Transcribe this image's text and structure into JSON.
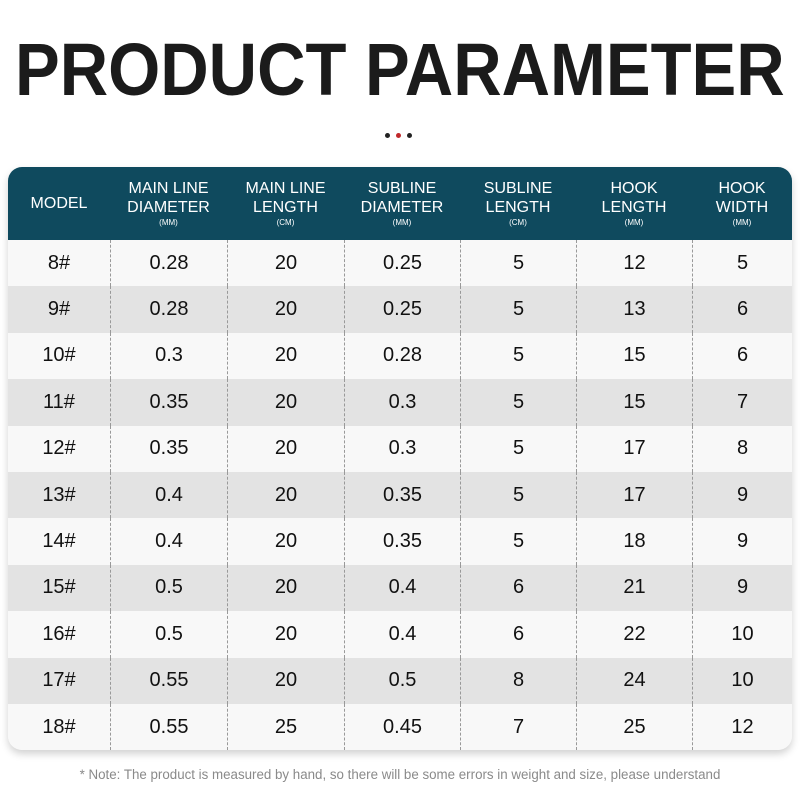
{
  "title": "PRODUCT PARAMETER",
  "colors": {
    "header_bg": "#0f4a5e",
    "accent_dot": "#c0282b"
  },
  "table": {
    "headers": [
      {
        "label": "MODEL",
        "unit": ""
      },
      {
        "label": "MAIN LINE DIAMETER",
        "unit": "(MM)"
      },
      {
        "label": "MAIN LINE LENGTH",
        "unit": "(CM)"
      },
      {
        "label": "SUBLINE DIAMETER",
        "unit": "(MM)"
      },
      {
        "label": "SUBLINE LENGTH",
        "unit": "(CM)"
      },
      {
        "label": "HOOK LENGTH",
        "unit": "(MM)"
      },
      {
        "label": "HOOK WIDTH",
        "unit": "(MM)"
      }
    ],
    "rows": [
      [
        "8#",
        "0.28",
        "20",
        "0.25",
        "5",
        "12",
        "5"
      ],
      [
        "9#",
        "0.28",
        "20",
        "0.25",
        "5",
        "13",
        "6"
      ],
      [
        "10#",
        "0.3",
        "20",
        "0.28",
        "5",
        "15",
        "6"
      ],
      [
        "11#",
        "0.35",
        "20",
        "0.3",
        "5",
        "15",
        "7"
      ],
      [
        "12#",
        "0.35",
        "20",
        "0.3",
        "5",
        "17",
        "8"
      ],
      [
        "13#",
        "0.4",
        "20",
        "0.35",
        "5",
        "17",
        "9"
      ],
      [
        "14#",
        "0.4",
        "20",
        "0.35",
        "5",
        "18",
        "9"
      ],
      [
        "15#",
        "0.5",
        "20",
        "0.4",
        "6",
        "21",
        "9"
      ],
      [
        "16#",
        "0.5",
        "20",
        "0.4",
        "6",
        "22",
        "10"
      ],
      [
        "17#",
        "0.55",
        "20",
        "0.5",
        "8",
        "24",
        "10"
      ],
      [
        "18#",
        "0.55",
        "25",
        "0.45",
        "7",
        "25",
        "12"
      ]
    ]
  },
  "note": "* Note: The product is measured by hand, so there will be some errors in weight and size, please understand"
}
